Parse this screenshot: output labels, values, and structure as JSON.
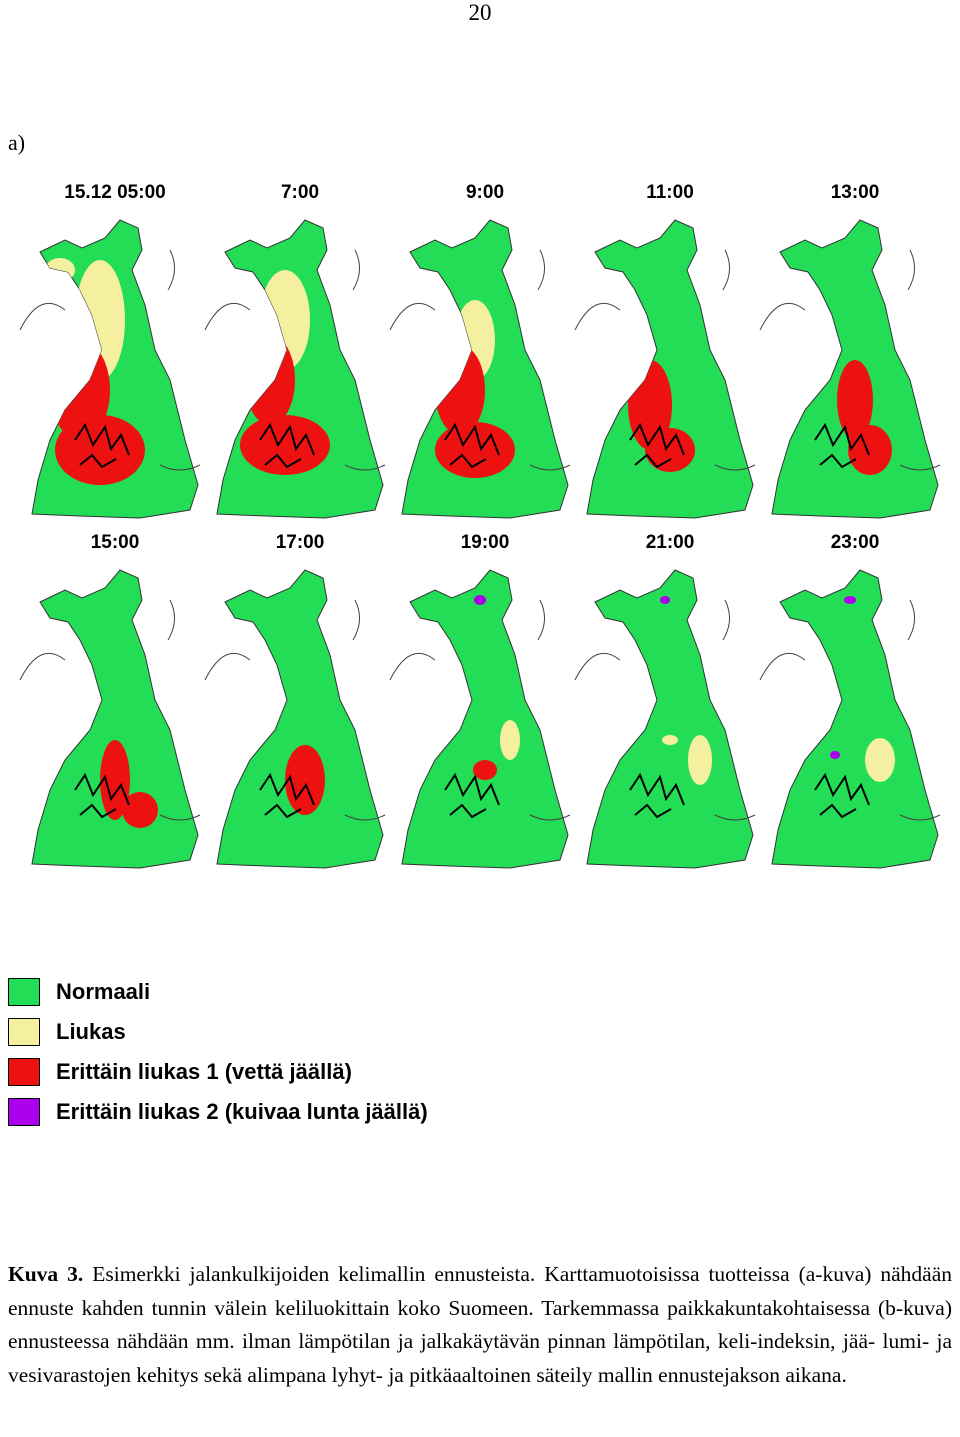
{
  "page_number": "20",
  "panel_label": "a)",
  "maps": [
    {
      "time": "15.12  05:00"
    },
    {
      "time": "7:00"
    },
    {
      "time": "9:00"
    },
    {
      "time": "11:00"
    },
    {
      "time": "13:00"
    },
    {
      "time": "15:00"
    },
    {
      "time": "17:00"
    },
    {
      "time": "19:00"
    },
    {
      "time": "21:00"
    },
    {
      "time": "23:00"
    }
  ],
  "legend": [
    {
      "label": "Normaali",
      "color": "#22dd55"
    },
    {
      "label": "Liukas",
      "color": "#f5f0a0"
    },
    {
      "label": "Erittäin liukas 1 (vettä jäällä)",
      "color": "#ee1111"
    },
    {
      "label": "Erittäin liukas 2 (kuivaa lunta jäällä)",
      "color": "#aa00ee"
    }
  ],
  "caption": {
    "label": "Kuva 3.",
    "text": "Esimerkki jalankulkijoiden kelimallin ennusteista. Karttamuotoisissa tuotteissa (a-kuva) nähdään ennuste kahden tunnin välein keliluokittain koko Suomeen. Tarkemmassa paikkakuntakohtaisessa (b-kuva) ennusteessa nähdään mm. ilman lämpötilan ja jalkakäytävän pinnan lämpötilan, keli-indeksin, jää- lumi- ja vesivarastojen kehitys sekä alimpana lyhyt- ja pitkäaaltoinen säteily mallin ennustejakson aikana."
  }
}
